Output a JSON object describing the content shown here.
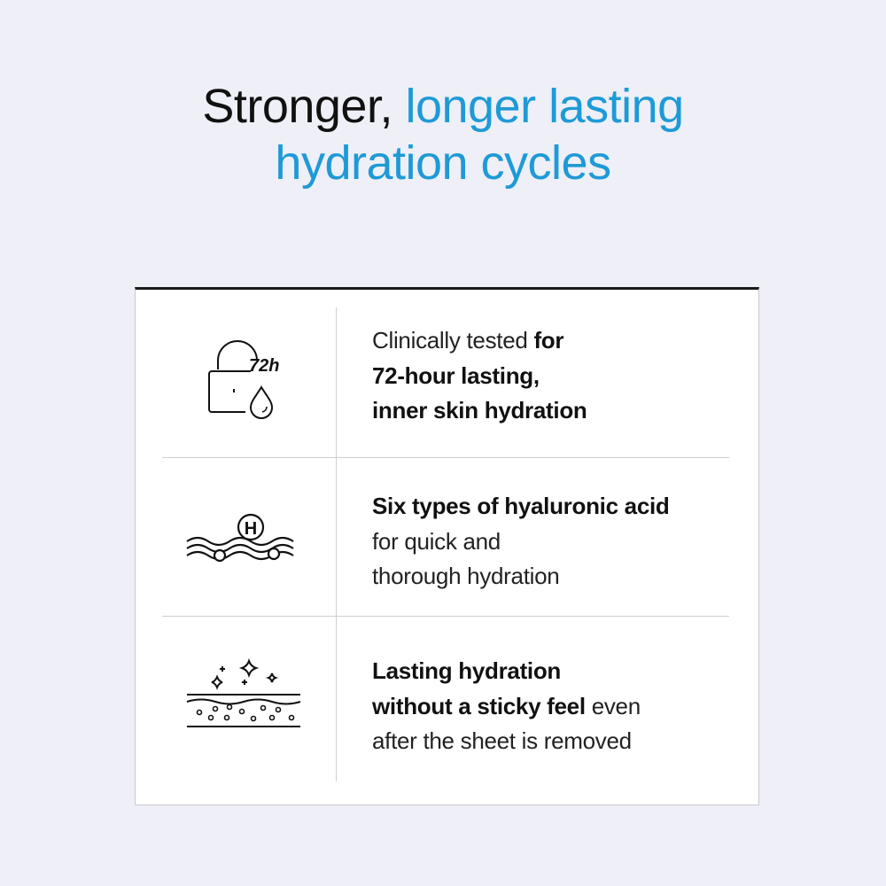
{
  "headline": {
    "part1": "Stronger, ",
    "part2": "longer lasting",
    "line2": "hydration cycles",
    "accent_color": "#1e9ad6"
  },
  "features": [
    {
      "icon": "lock-72h-droplet-icon",
      "icon_label": "72h",
      "segments": [
        [
          "Clinically tested ",
          false
        ],
        [
          "for",
          true
        ]
      ],
      "line2": "72-hour lasting,",
      "line3": "inner skin hydration"
    },
    {
      "icon": "hyaluronic-waves-icon",
      "icon_label": "H",
      "line1": "Six types of hyaluronic acid",
      "line2": "for quick and",
      "line3": "thorough hydration"
    },
    {
      "icon": "skin-layer-sparkle-icon",
      "line1": "Lasting hydration",
      "line2_bold": "without a sticky feel",
      "line2_rest": " even",
      "line3": "after the sheet is removed"
    }
  ]
}
